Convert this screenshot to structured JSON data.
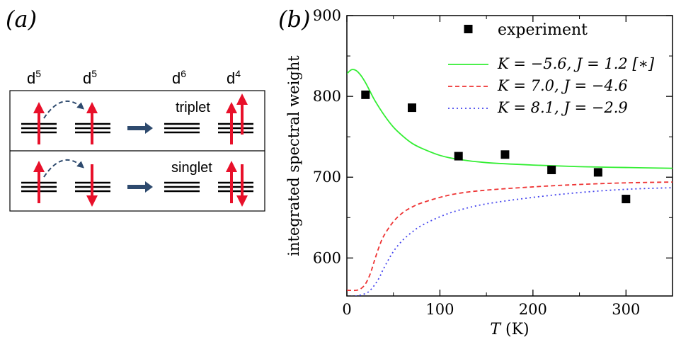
{
  "panel_a": {
    "label": "(a)",
    "configs": [
      {
        "text": "d",
        "sup": "5"
      },
      {
        "text": "d",
        "sup": "5"
      },
      {
        "text": "d",
        "sup": "6"
      },
      {
        "text": "d",
        "sup": "4"
      }
    ],
    "rows": [
      {
        "label": "triplet"
      },
      {
        "label": "singlet"
      }
    ],
    "colors": {
      "spin": "#e8102a",
      "hop": "#2e4a6e",
      "level": "#000000"
    }
  },
  "panel_b": {
    "label": "(b)"
  },
  "chart_data": {
    "type": "line",
    "title": "",
    "xlabel_italic": "T",
    "xlabel_unit": "(K)",
    "ylabel": "integrated spectral weight",
    "xlim": [
      0,
      350
    ],
    "ylim": [
      553,
      900
    ],
    "xticks": [
      0,
      100,
      200,
      300
    ],
    "yticks": [
      600,
      700,
      800,
      900
    ],
    "legend_position": "top-right",
    "scatter": {
      "name": "experiment",
      "color": "#000000",
      "points": [
        [
          20,
          802
        ],
        [
          70,
          786
        ],
        [
          120,
          726
        ],
        [
          170,
          728
        ],
        [
          220,
          709
        ],
        [
          270,
          706
        ],
        [
          300,
          673
        ]
      ]
    },
    "series": [
      {
        "name": "K = −5.6, J = 1.2 [∗]",
        "color": "#33ee33",
        "style": "solid",
        "x": [
          0,
          5,
          10,
          15,
          20,
          25,
          30,
          40,
          50,
          60,
          70,
          80,
          100,
          120,
          150,
          200,
          250,
          300,
          350
        ],
        "y": [
          828,
          833,
          832,
          826,
          817,
          806,
          795,
          777,
          762,
          751,
          742,
          736,
          727,
          722,
          718,
          715,
          713,
          712,
          711
        ]
      },
      {
        "name": "K = 7.0, J = −4.6",
        "color": "#ee3333",
        "style": "dashed",
        "x": [
          0,
          10,
          15,
          20,
          25,
          30,
          35,
          40,
          50,
          60,
          70,
          80,
          100,
          120,
          150,
          200,
          250,
          300,
          350
        ],
        "y": [
          560,
          560,
          562,
          568,
          580,
          598,
          615,
          628,
          645,
          656,
          663,
          668,
          675,
          680,
          684,
          688,
          691,
          693,
          694
        ]
      },
      {
        "name": "K = 8.1, J = −2.9",
        "color": "#4444ee",
        "style": "dotted",
        "x": [
          0,
          10,
          20,
          25,
          30,
          35,
          40,
          50,
          60,
          70,
          80,
          100,
          120,
          150,
          200,
          250,
          300,
          350
        ],
        "y": [
          552,
          553,
          556,
          560,
          567,
          576,
          588,
          608,
          622,
          632,
          640,
          651,
          659,
          667,
          675,
          681,
          685,
          687
        ]
      }
    ]
  }
}
